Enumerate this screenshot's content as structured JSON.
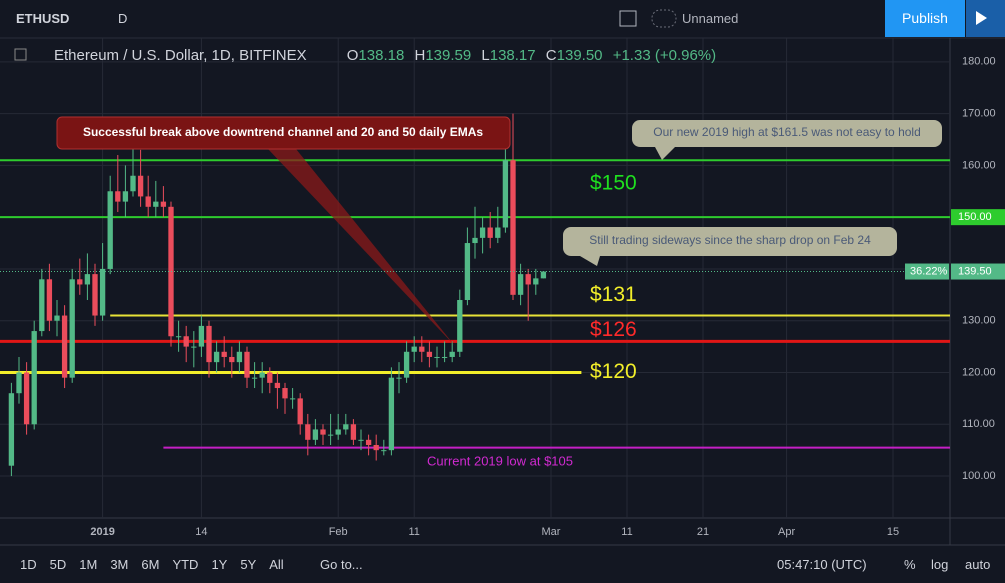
{
  "toolbar": {
    "symbol": "ETHUSD",
    "interval": "D",
    "layout_name": "Unnamed",
    "publish": "Publish"
  },
  "legend": {
    "name": "Ethereum / U.S. Dollar, 1D, BITFINEX",
    "o_key": "O",
    "o": "138.18",
    "h_key": "H",
    "h": "139.59",
    "l_key": "L",
    "l": "138.17",
    "c_key": "C",
    "c": "139.50",
    "change": "+1.33",
    "change_pct": "(+0.96%)"
  },
  "chart_data": {
    "type": "candlestick",
    "x": [
      -12,
      -11,
      -10,
      -9,
      -8,
      -7,
      -6,
      -5,
      -4,
      -3,
      -2,
      -1,
      0,
      1,
      2,
      3,
      4,
      5,
      6,
      7,
      8,
      9,
      10,
      11,
      12,
      13,
      14,
      15,
      16,
      17,
      18,
      19,
      20,
      21,
      22,
      23,
      24,
      25,
      26,
      27,
      28,
      29,
      30,
      31,
      32,
      33,
      34,
      35,
      36,
      37,
      38,
      39,
      40,
      41,
      42,
      43,
      44,
      45,
      46,
      47,
      48,
      49,
      50,
      51,
      52,
      53,
      54,
      55,
      56,
      57,
      58
    ],
    "open": [
      102,
      116,
      120,
      110,
      128,
      138,
      130,
      131,
      119,
      138,
      137,
      139,
      131,
      140,
      155,
      153,
      155,
      158,
      154,
      152,
      153,
      152,
      127,
      127,
      125,
      125,
      129,
      122,
      124,
      123,
      122,
      124,
      119,
      119,
      120,
      118,
      117,
      115,
      115,
      110,
      107,
      109,
      108,
      108,
      109,
      110,
      107,
      107,
      106,
      105,
      105,
      119,
      119,
      124,
      125,
      124,
      123,
      123,
      123,
      124,
      134,
      145,
      146,
      148,
      146,
      148,
      161,
      135,
      139,
      137,
      138.18
    ],
    "high": [
      118,
      123,
      122,
      130,
      140,
      141,
      134,
      133,
      140,
      142,
      143,
      141,
      145,
      158,
      162,
      160,
      165,
      163,
      158,
      157,
      156,
      153,
      130,
      129,
      128,
      131,
      130,
      126,
      127,
      125,
      126,
      125,
      122,
      122,
      121,
      120,
      118,
      117,
      116,
      112,
      111,
      110,
      112,
      112,
      112,
      111,
      109,
      108,
      108,
      107,
      121,
      122,
      126,
      127,
      127,
      126,
      125,
      126,
      126,
      136,
      148,
      152,
      150,
      151,
      152,
      165,
      170,
      141,
      140,
      140,
      139.59
    ],
    "low": [
      100,
      114,
      108,
      109,
      127,
      128,
      127,
      117,
      118,
      135,
      134,
      129,
      130,
      139,
      151,
      150,
      154,
      152,
      150,
      150,
      150,
      125,
      124,
      122,
      121,
      123,
      119,
      120,
      121,
      119,
      120,
      117,
      117,
      116,
      116,
      113,
      112,
      113,
      108,
      104,
      106,
      106,
      106,
      107,
      108,
      106,
      105,
      104,
      103,
      104,
      104,
      116,
      118,
      122,
      122,
      121,
      121,
      122,
      122,
      123,
      133,
      142,
      143,
      144,
      145,
      147,
      134,
      133,
      130,
      135,
      138.17
    ],
    "close": [
      116,
      120,
      110,
      128,
      138,
      130,
      131,
      119,
      138,
      137,
      139,
      131,
      140,
      155,
      153,
      155,
      158,
      154,
      152,
      153,
      152,
      127,
      127,
      125,
      125,
      129,
      122,
      124,
      123,
      122,
      124,
      119,
      119,
      120,
      118,
      117,
      115,
      115,
      110,
      107,
      109,
      108,
      108,
      109,
      110,
      107,
      107,
      106,
      105,
      105,
      119,
      119,
      124,
      125,
      124,
      123,
      123,
      123,
      124,
      134,
      145,
      146,
      148,
      146,
      148,
      161,
      135,
      139,
      137,
      138.18,
      139.5
    ],
    "up_color": "#53b987",
    "down_color": "#eb4d5c",
    "xlim": [
      -13.5,
      111.5
    ],
    "xticks": [
      {
        "value": 0,
        "label": "2019"
      },
      {
        "value": 13,
        "label": "14"
      },
      {
        "value": 31,
        "label": "Feb"
      },
      {
        "value": 41,
        "label": "11"
      },
      {
        "value": 59,
        "label": "Mar"
      },
      {
        "value": 69,
        "label": "11"
      },
      {
        "value": 79,
        "label": "21"
      },
      {
        "value": 90,
        "label": "Apr"
      },
      {
        "value": 104,
        "label": "15"
      }
    ],
    "ylim": [
      91.9,
      184.6
    ],
    "yticks": [
      {
        "value": 100,
        "label": "100.00"
      },
      {
        "value": 110,
        "label": "110.00"
      },
      {
        "value": 120,
        "label": "120.00"
      },
      {
        "value": 130,
        "label": "130.00"
      },
      {
        "value": 140,
        "label": "140.00"
      },
      {
        "value": 150,
        "label": "150.00"
      },
      {
        "value": 160,
        "label": "160.00"
      },
      {
        "value": 170,
        "label": "170.00"
      },
      {
        "value": 180,
        "label": "180.00"
      }
    ],
    "grid": true,
    "levels": [
      {
        "value": 161,
        "color": "#2ecc2e"
      },
      {
        "value": 150,
        "color": "#2ecc2e",
        "label": "$150",
        "label_color": "#1fe01f"
      },
      {
        "value": 131,
        "color": "#e8e337",
        "x_range": [
          1,
          111.5
        ],
        "label": "$131",
        "label_color": "#f2ee2a"
      },
      {
        "value": 126,
        "color": "#e01616",
        "label": "$126",
        "label_color": "#ff2a2a"
      },
      {
        "value": 120,
        "color": "#f2ee2a",
        "x_range": [
          -13.5,
          63
        ],
        "label": "$120",
        "label_color": "#f2ee2a"
      },
      {
        "value": 105.5,
        "color": "#c51fc5",
        "x_range": [
          8,
          111.5
        ]
      }
    ],
    "price_badges": [
      {
        "value": 150,
        "label": "150.00",
        "color": "#2ecc2e"
      },
      {
        "value": 139.5,
        "label": "139.50",
        "color": "#53b987"
      }
    ],
    "badge_pct": "36.22%",
    "annotations": {
      "breakout": "Successful break above downtrend channel and 20 and 50 daily EMAs",
      "high": "Our new 2019 high at $161.5 was not easy to hold",
      "sideways": "Still trading sideways since the sharp drop on Feb 24",
      "low": "Current 2019 low at $105"
    }
  },
  "bottom_bar": {
    "ranges": [
      "1D",
      "5D",
      "1M",
      "3M",
      "6M",
      "YTD",
      "1Y",
      "5Y",
      "All"
    ],
    "goto": "Go to...",
    "clock": "05:47:10 (UTC)",
    "pct": "%",
    "log": "log",
    "auto": "auto"
  }
}
